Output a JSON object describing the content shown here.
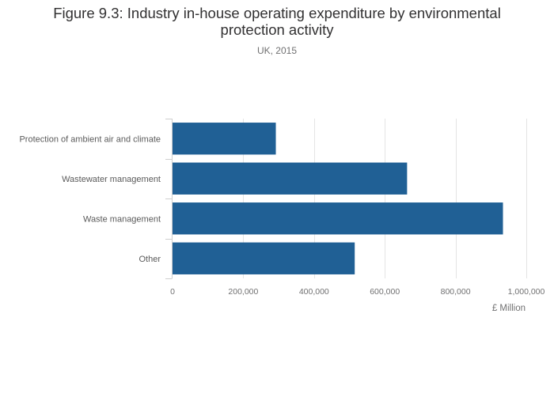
{
  "chart_data": {
    "type": "bar",
    "orientation": "horizontal",
    "title_lines": [
      "Figure 9.3: Industry in-house operating expenditure by environmental",
      "protection activity"
    ],
    "subtitle": "UK, 2015",
    "categories": [
      "Protection of ambient air and climate",
      "Wastewater management",
      "Waste management",
      "Other"
    ],
    "values": [
      292000,
      663000,
      934000,
      515000
    ],
    "xlabel": "£ Million",
    "xlim": [
      0,
      1000000
    ],
    "xticks": [
      0,
      200000,
      400000,
      600000,
      800000,
      1000000
    ],
    "xtick_labels": [
      "0",
      "200,000",
      "400,000",
      "600,000",
      "800,000",
      "1,000,000"
    ],
    "grid": true,
    "bar_color": "#206095"
  }
}
